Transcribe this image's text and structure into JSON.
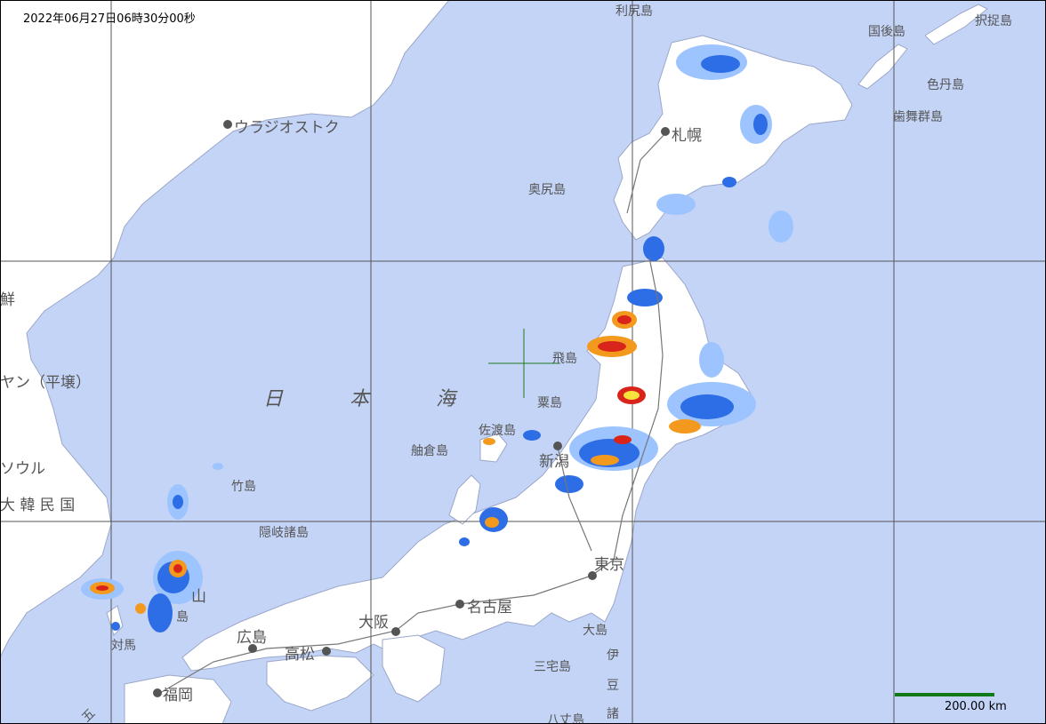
{
  "timestamp": "2022年06月27日06時30分00秒",
  "scale": {
    "label": "200.00 km",
    "color": "#117a17"
  },
  "colors": {
    "sea": "#c4d4f7",
    "land": "#ffffff",
    "grid": "#555555",
    "crosshair": "#1a7a1a",
    "precip_light": "#9dc4ff",
    "precip_blue": "#2d6ee6",
    "precip_yellow": "#f5e23a",
    "precip_orange": "#f39a1e",
    "precip_red": "#d9241c"
  },
  "sea_label": {
    "chars": [
      "日",
      "本",
      "海"
    ]
  },
  "labels": {
    "rishiri": "利尻島",
    "kunashiri": "国後島",
    "etorofu": "択捉島",
    "shikotan": "色丹島",
    "habomai": "歯舞群島",
    "vladivostok": "ウラジオストク",
    "sapporo": "札幌",
    "okushiri": "奥尻島",
    "tobishima": "飛島",
    "awashima": "粟島",
    "sado": "佐渡島",
    "niigata": "新潟",
    "noto": "舳倉島",
    "takeshima": "竹島",
    "oki": "隠岐諸島",
    "tokyo": "東京",
    "nagoya": "名古屋",
    "osaka": "大阪",
    "hiroshima": "広島",
    "takamatsu": "高松",
    "fukuoka": "福岡",
    "tsushima": "対馬",
    "oshima": "大島",
    "miyake": "三宅島",
    "hachijo": "八丈島",
    "izu1": "伊",
    "izu2": "豆",
    "izu3": "諸",
    "pyongyang": "ヤン（平壌）",
    "seoul": "ソウル",
    "korea": "大 韓 民 国",
    "chosen": "鮮",
    "yamaguchi_frag": "山",
    "iki_frag": "島",
    "goto_frag": "五"
  }
}
